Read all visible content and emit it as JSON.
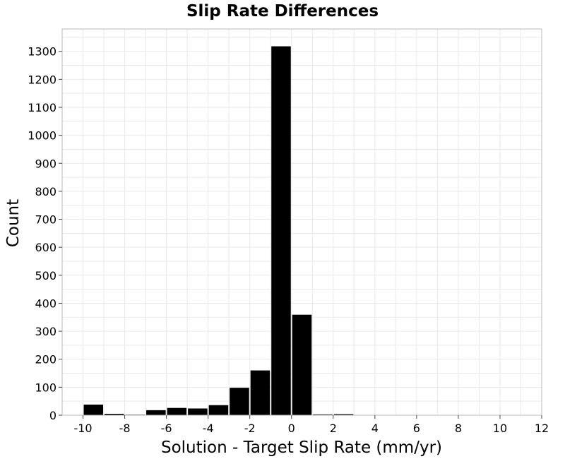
{
  "chart_data": {
    "type": "bar",
    "title": "Slip Rate Differences",
    "xlabel": "Solution - Target Slip Rate (mm/yr)",
    "ylabel": "Count",
    "xlim": [
      -11,
      12
    ],
    "ylim": [
      0,
      1380
    ],
    "x_ticks": [
      -10,
      -8,
      -6,
      -4,
      -2,
      0,
      2,
      4,
      6,
      8,
      10,
      12
    ],
    "x_tick_labels": [
      "-10",
      "-8",
      "-6",
      "-4",
      "-2",
      "0",
      "2",
      "4",
      "6",
      "8",
      "10",
      "12"
    ],
    "y_ticks": [
      0,
      100,
      200,
      300,
      400,
      500,
      600,
      700,
      800,
      900,
      1000,
      1100,
      1200,
      1300
    ],
    "y_tick_labels": [
      "0",
      "100",
      "200",
      "300",
      "400",
      "500",
      "600",
      "700",
      "800",
      "900",
      "1000",
      "1100",
      "1200",
      "1300"
    ],
    "bin_width": 1,
    "bin_centers": [
      -9.5,
      -8.5,
      -7.5,
      -6.5,
      -5.5,
      -4.5,
      -3.5,
      -2.5,
      -1.5,
      -0.5,
      0.5,
      1.5,
      2.5
    ],
    "values": [
      38,
      5,
      2,
      18,
      26,
      24,
      36,
      98,
      160,
      1318,
      359,
      3,
      4
    ],
    "grid": true,
    "colors": {
      "bar": "#000000",
      "grid": "#e9e9e9",
      "frame": "#b8b8b8"
    }
  }
}
